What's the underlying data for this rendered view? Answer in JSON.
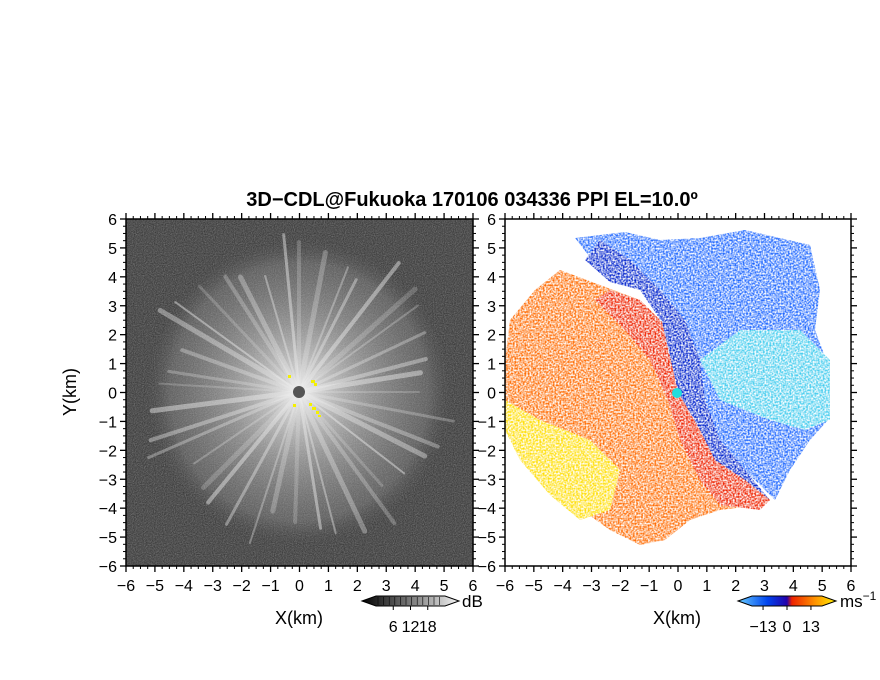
{
  "chart_data": [
    {
      "type": "heatmap",
      "panel": "left",
      "title": "3D−CDL@Fukuoka 170106 034336 PPI EL=10.0º",
      "xlabel": "X(km)",
      "ylabel": "Y(km)",
      "xlim": [
        -6,
        6
      ],
      "ylim": [
        -6,
        6
      ],
      "xticks": [
        "−6",
        "−5",
        "−4",
        "−3",
        "−2",
        "−1",
        "0",
        "1",
        "2",
        "3",
        "4",
        "5",
        "6"
      ],
      "yticks": [
        "6",
        "5",
        "4",
        "3",
        "2",
        "1",
        "0",
        "−1",
        "−2",
        "−3",
        "−4",
        "−5",
        "−6"
      ],
      "colorbar": {
        "unit": "dB",
        "range": [
          0,
          24
        ],
        "ticks": [
          "6",
          "12",
          "18"
        ],
        "colormap": "grayscale"
      },
      "quantity": "signal-to-noise ratio"
    },
    {
      "type": "heatmap",
      "panel": "right",
      "xlabel": "X(km)",
      "xlim": [
        -6,
        6
      ],
      "ylim": [
        -6,
        6
      ],
      "xticks": [
        "−6",
        "−5",
        "−4",
        "−3",
        "−2",
        "−1",
        "0",
        "1",
        "2",
        "3",
        "4",
        "5",
        "6"
      ],
      "yticks": [
        "6",
        "5",
        "4",
        "3",
        "2",
        "1",
        "0",
        "−1",
        "−2",
        "−3",
        "−4",
        "−5",
        "−6"
      ],
      "colorbar": {
        "unit": "ms",
        "unit_exp": "−1",
        "range": [
          -19,
          19
        ],
        "ticks": [
          "−13",
          "0",
          "13"
        ],
        "colormap": "blue-cyan-red-yellow"
      },
      "quantity": "Doppler velocity"
    }
  ],
  "colors": {
    "noise_bg": "#2e2e2e",
    "echo_light": "#e0e0e0",
    "center_mark": "#555555",
    "yellow_marks": "#f4f000",
    "vel_dark_blue": "#0033cc",
    "vel_blue": "#0088ff",
    "vel_cyan": "#33ccee",
    "vel_red": "#ee2200",
    "vel_orange": "#ff8800",
    "vel_yellow": "#ffee00"
  }
}
